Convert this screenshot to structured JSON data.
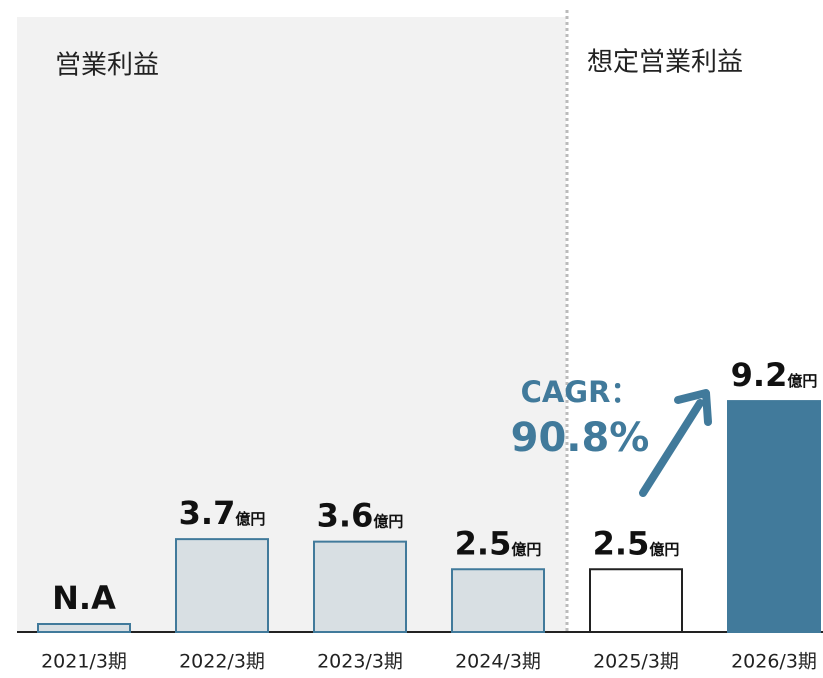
{
  "chart_data": {
    "type": "bar",
    "section_titles": [
      "営業利益",
      "想定営業利益"
    ],
    "categories": [
      "2021/3期",
      "2022/3期",
      "2023/3期",
      "2024/3期",
      "2025/3期",
      "2026/3期"
    ],
    "values": [
      null,
      3.7,
      3.6,
      2.5,
      2.5,
      9.2
    ],
    "value_labels": [
      "N.A",
      "3.7",
      "3.6",
      "2.5",
      "2.5",
      "9.2"
    ],
    "unit": "億円",
    "colors": [
      "#d8dfe3",
      "#d8dfe3",
      "#d8dfe3",
      "#d8dfe3",
      "#ffffff",
      "#417a9b"
    ],
    "edge_colors": [
      "#417a9b",
      "#417a9b",
      "#417a9b",
      "#417a9b",
      "#222222",
      "#417a9b"
    ],
    "annotation": {
      "label": "CAGR：",
      "value": "90.8%"
    },
    "ylim": [
      0,
      10
    ]
  }
}
